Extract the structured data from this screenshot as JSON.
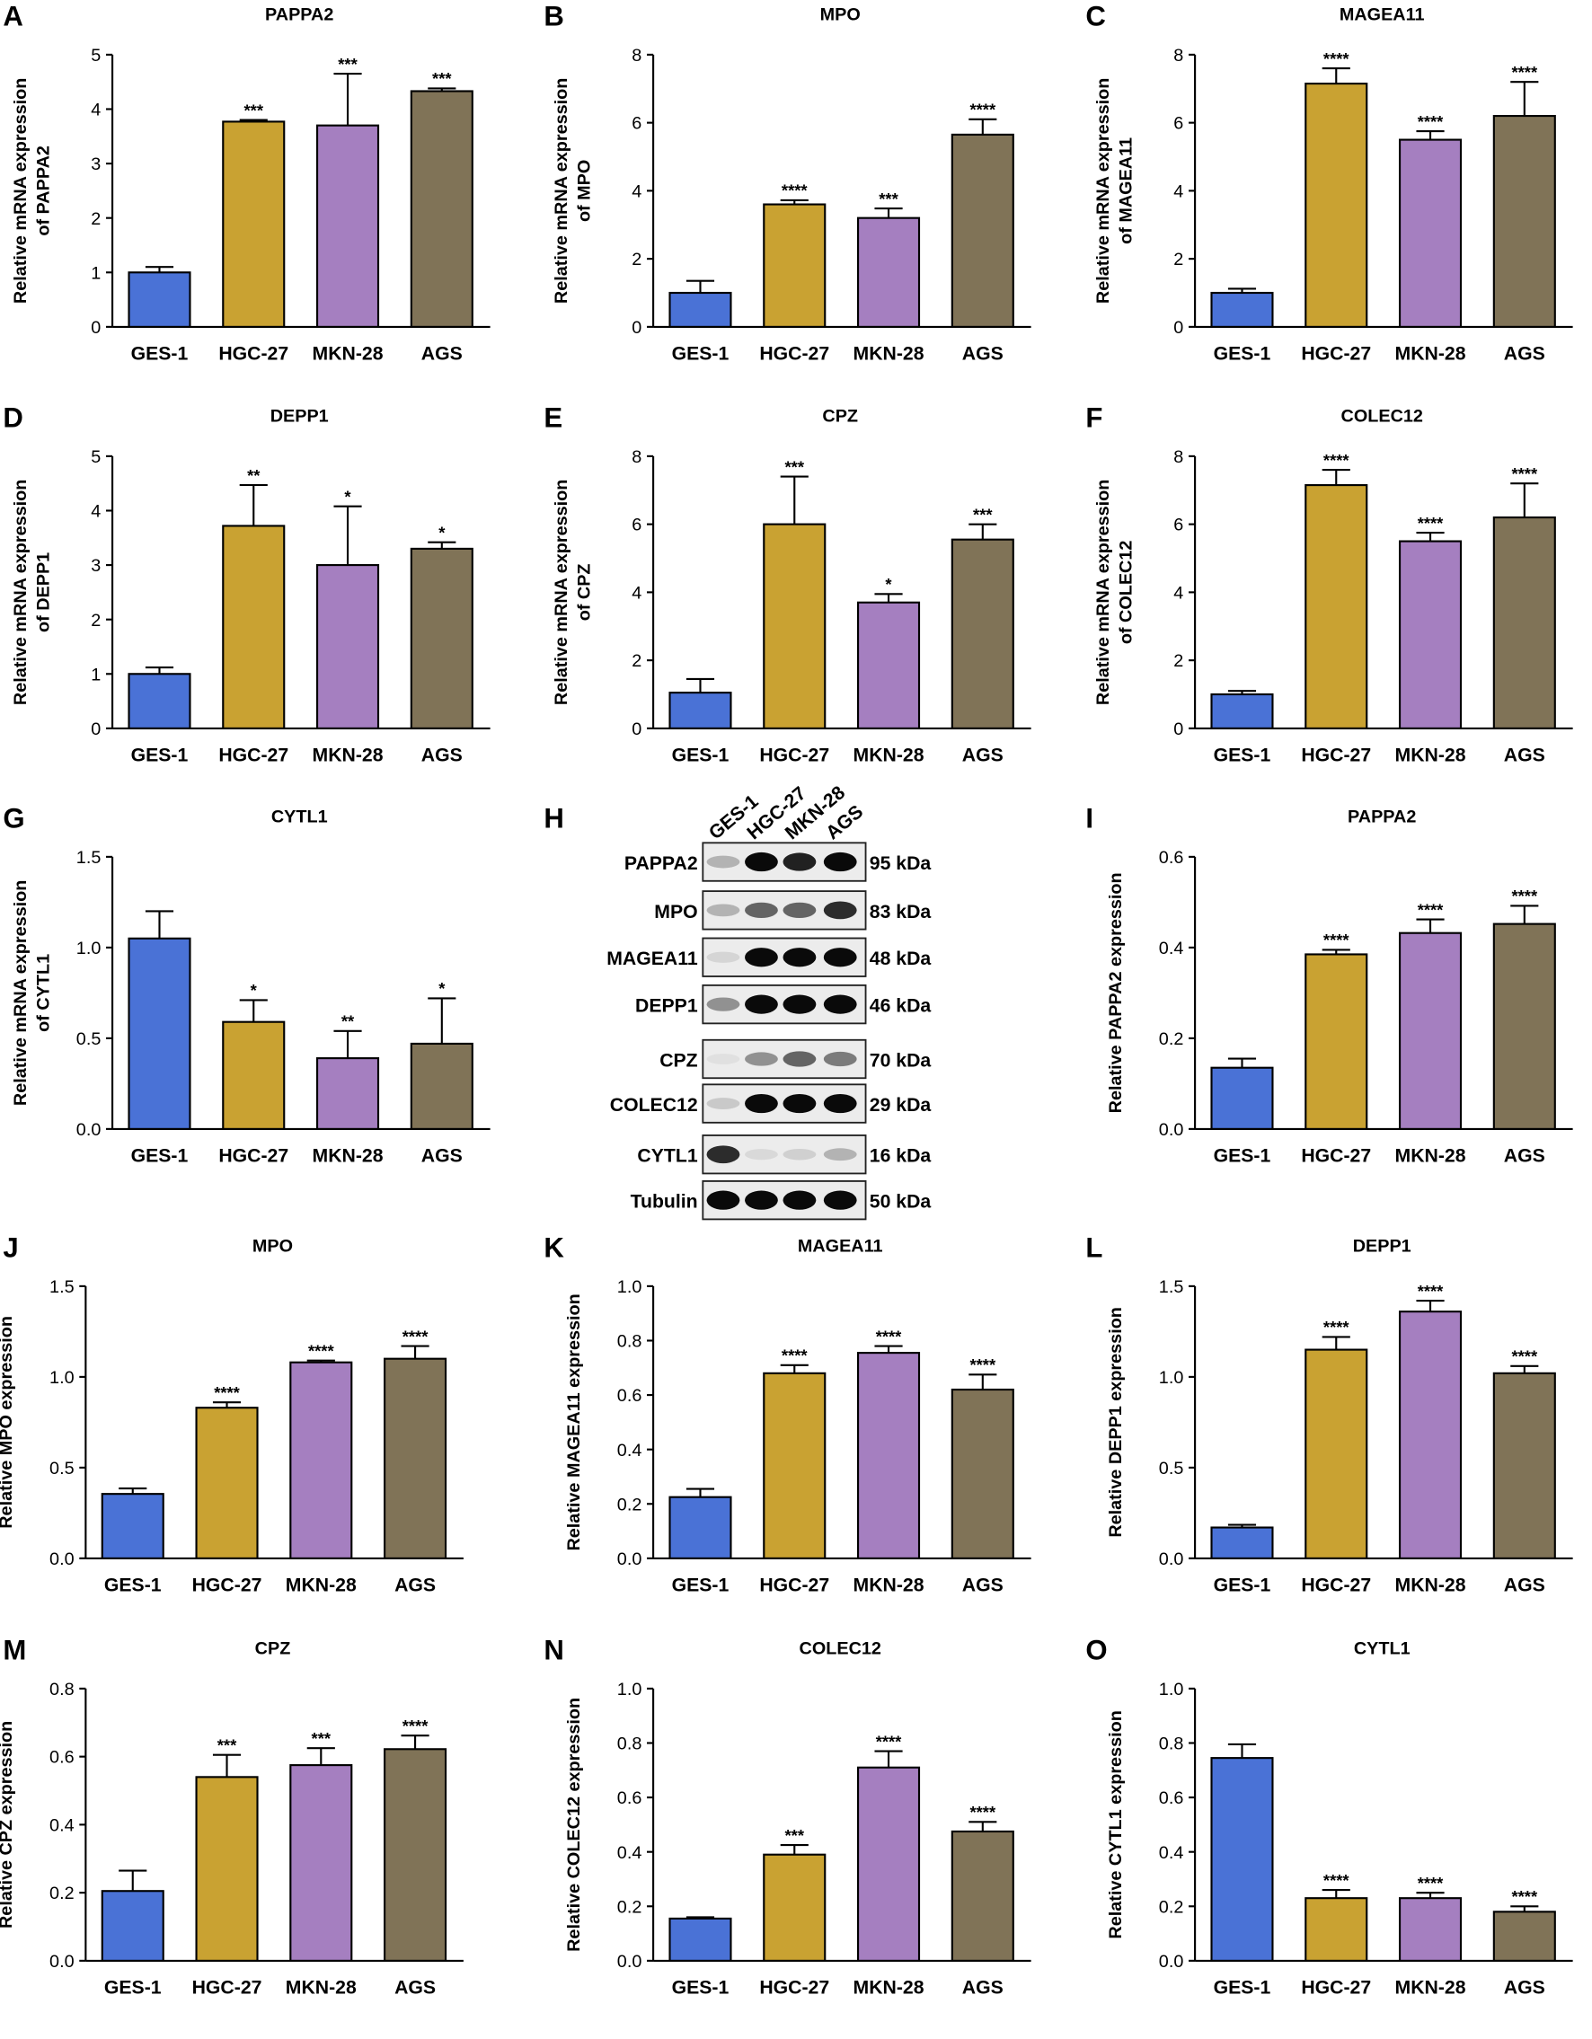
{
  "colors": {
    "GES-1": "#4a72d6",
    "HGC-27": "#c9a232",
    "MKN-28": "#a57fc0",
    "AGS": "#807357",
    "axis": "#000000"
  },
  "categories": [
    "GES-1",
    "HGC-27",
    "MKN-28",
    "AGS"
  ],
  "chart_data": [
    {
      "panel": "A",
      "type": "bar",
      "title": "PAPPA2",
      "ylabel": [
        "Relative mRNA expression",
        "of PAPPA2"
      ],
      "ylim": [
        0,
        5
      ],
      "yticks": [
        "0",
        "1",
        "2",
        "3",
        "4",
        "5"
      ],
      "values": [
        1.0,
        3.77,
        3.7,
        4.33
      ],
      "errors": [
        0.1,
        0.03,
        0.95,
        0.05
      ],
      "significance": [
        "",
        "***",
        "***",
        "***"
      ]
    },
    {
      "panel": "B",
      "type": "bar",
      "title": "MPO",
      "ylabel": [
        "Relative mRNA expression",
        "of MPO"
      ],
      "ylim": [
        0,
        8
      ],
      "yticks": [
        "0",
        "2",
        "4",
        "6",
        "8"
      ],
      "values": [
        1.0,
        3.6,
        3.2,
        5.65
      ],
      "errors": [
        0.35,
        0.12,
        0.28,
        0.45
      ],
      "significance": [
        "",
        "****",
        "***",
        "****"
      ]
    },
    {
      "panel": "C",
      "type": "bar",
      "title": "MAGEA11",
      "ylabel": [
        "Relative mRNA expression",
        "of MAGEA11"
      ],
      "ylim": [
        0,
        8
      ],
      "yticks": [
        "0",
        "2",
        "4",
        "6",
        "8"
      ],
      "values": [
        1.0,
        7.15,
        5.5,
        6.2
      ],
      "errors": [
        0.12,
        0.45,
        0.25,
        1.0
      ],
      "significance": [
        "",
        "****",
        "****",
        "****"
      ]
    },
    {
      "panel": "D",
      "type": "bar",
      "title": "DEPP1",
      "ylabel": [
        "Relative mRNA expression",
        "of DEPP1"
      ],
      "ylim": [
        0,
        5
      ],
      "yticks": [
        "0",
        "1",
        "2",
        "3",
        "4",
        "5"
      ],
      "values": [
        1.0,
        3.72,
        3.0,
        3.3
      ],
      "errors": [
        0.12,
        0.75,
        1.08,
        0.12
      ],
      "significance": [
        "",
        "**",
        "*",
        "*"
      ]
    },
    {
      "panel": "E",
      "type": "bar",
      "title": "CPZ",
      "ylabel": [
        "Relative mRNA expression",
        "of CPZ"
      ],
      "ylim": [
        0,
        8
      ],
      "yticks": [
        "0",
        "2",
        "4",
        "6",
        "8"
      ],
      "values": [
        1.05,
        6.0,
        3.7,
        5.55
      ],
      "errors": [
        0.4,
        1.4,
        0.25,
        0.45
      ],
      "significance": [
        "",
        "***",
        "*",
        "***"
      ]
    },
    {
      "panel": "F",
      "type": "bar",
      "title": "COLEC12",
      "ylabel": [
        "Relative mRNA expression",
        "of COLEC12"
      ],
      "ylim": [
        0,
        8
      ],
      "yticks": [
        "0",
        "2",
        "4",
        "6",
        "8"
      ],
      "values": [
        1.0,
        7.15,
        5.5,
        6.2
      ],
      "errors": [
        0.1,
        0.45,
        0.25,
        1.0
      ],
      "significance": [
        "",
        "****",
        "****",
        "****"
      ]
    },
    {
      "panel": "G",
      "type": "bar",
      "title": "CYTL1",
      "ylabel": [
        "Relative mRNA expression",
        "of CYTL1"
      ],
      "ylim": [
        0,
        1.5
      ],
      "yticks": [
        "0.0",
        "0.5",
        "1.0",
        "1.5"
      ],
      "values": [
        1.05,
        0.59,
        0.39,
        0.47
      ],
      "errors": [
        0.15,
        0.12,
        0.15,
        0.25
      ],
      "significance": [
        "",
        "*",
        "**",
        "*"
      ]
    },
    {
      "panel": "I",
      "type": "bar",
      "title": "PAPPA2",
      "ylabel": [
        "Relative PAPPA2 expression"
      ],
      "ylim": [
        0,
        0.6
      ],
      "yticks": [
        "0.0",
        "0.2",
        "0.4",
        "0.6"
      ],
      "values": [
        0.135,
        0.385,
        0.432,
        0.452
      ],
      "errors": [
        0.02,
        0.01,
        0.03,
        0.04
      ],
      "significance": [
        "",
        "****",
        "****",
        "****"
      ]
    },
    {
      "panel": "J",
      "type": "bar",
      "title": "MPO",
      "ylabel": [
        "Relative MPO expression"
      ],
      "ylim": [
        0,
        1.5
      ],
      "yticks": [
        "0.0",
        "0.5",
        "1.0",
        "1.5"
      ],
      "values": [
        0.355,
        0.83,
        1.08,
        1.1
      ],
      "errors": [
        0.03,
        0.03,
        0.01,
        0.07
      ],
      "significance": [
        "",
        "****",
        "****",
        "****"
      ]
    },
    {
      "panel": "K",
      "type": "bar",
      "title": "MAGEA11",
      "ylabel": [
        "Relative MAGEA11 expression"
      ],
      "ylim": [
        0,
        1.0
      ],
      "yticks": [
        "0.0",
        "0.2",
        "0.4",
        "0.6",
        "0.8",
        "1.0"
      ],
      "values": [
        0.225,
        0.68,
        0.755,
        0.62
      ],
      "errors": [
        0.03,
        0.03,
        0.025,
        0.055
      ],
      "significance": [
        "",
        "****",
        "****",
        "****"
      ]
    },
    {
      "panel": "L",
      "type": "bar",
      "title": "DEPP1",
      "ylabel": [
        "Relative DEPP1 expression"
      ],
      "ylim": [
        0,
        1.5
      ],
      "yticks": [
        "0.0",
        "0.5",
        "1.0",
        "1.5"
      ],
      "values": [
        0.17,
        1.15,
        1.36,
        1.02
      ],
      "errors": [
        0.015,
        0.07,
        0.06,
        0.04
      ],
      "significance": [
        "",
        "****",
        "****",
        "****"
      ]
    },
    {
      "panel": "M",
      "type": "bar",
      "title": "CPZ",
      "ylabel": [
        "Relative CPZ expression"
      ],
      "ylim": [
        0,
        0.8
      ],
      "yticks": [
        "0.0",
        "0.2",
        "0.4",
        "0.6",
        "0.8"
      ],
      "values": [
        0.205,
        0.54,
        0.575,
        0.622
      ],
      "errors": [
        0.06,
        0.065,
        0.05,
        0.04
      ],
      "significance": [
        "",
        "***",
        "***",
        "****"
      ]
    },
    {
      "panel": "N",
      "type": "bar",
      "title": "COLEC12",
      "ylabel": [
        "Relative COLEC12 expression"
      ],
      "ylim": [
        0,
        1.0
      ],
      "yticks": [
        "0.0",
        "0.2",
        "0.4",
        "0.6",
        "0.8",
        "1.0"
      ],
      "values": [
        0.155,
        0.39,
        0.71,
        0.475
      ],
      "errors": [
        0.005,
        0.035,
        0.06,
        0.035
      ],
      "significance": [
        "",
        "***",
        "****",
        "****"
      ]
    },
    {
      "panel": "O",
      "type": "bar",
      "title": "CYTL1",
      "ylabel": [
        "Relative CYTL1 expression"
      ],
      "ylim": [
        0,
        1.0
      ],
      "yticks": [
        "0.0",
        "0.2",
        "0.4",
        "0.6",
        "0.8",
        "1.0"
      ],
      "values": [
        0.745,
        0.23,
        0.23,
        0.18
      ],
      "errors": [
        0.05,
        0.03,
        0.02,
        0.02
      ],
      "significance": [
        "",
        "****",
        "****",
        "****"
      ]
    }
  ],
  "blot": {
    "panel": "H",
    "lanes": [
      "GES-1",
      "HGC-27",
      "MKN-28",
      "AGS"
    ],
    "rows": [
      {
        "protein": "PAPPA2",
        "size": "95 kDa",
        "intensity": [
          0.25,
          1.0,
          0.9,
          1.0
        ]
      },
      {
        "protein": "MPO",
        "size": "83 kDa",
        "intensity": [
          0.25,
          0.6,
          0.6,
          0.85
        ]
      },
      {
        "protein": "MAGEA11",
        "size": "48 kDa",
        "intensity": [
          0.1,
          1.0,
          1.0,
          1.0
        ]
      },
      {
        "protein": "DEPP1",
        "size": "46 kDa",
        "intensity": [
          0.4,
          1.0,
          1.0,
          1.0
        ]
      },
      {
        "protein": "CPZ",
        "size": "70 kDa",
        "intensity": [
          0.05,
          0.4,
          0.6,
          0.5
        ]
      },
      {
        "protein": "COLEC12",
        "size": "29 kDa",
        "intensity": [
          0.15,
          1.0,
          1.0,
          1.0
        ]
      },
      {
        "protein": "CYTL1",
        "size": "16 kDa",
        "intensity": [
          0.85,
          0.08,
          0.12,
          0.25
        ]
      },
      {
        "protein": "Tubulin",
        "size": "50 kDa",
        "intensity": [
          1.0,
          1.0,
          1.0,
          1.0
        ]
      }
    ]
  }
}
